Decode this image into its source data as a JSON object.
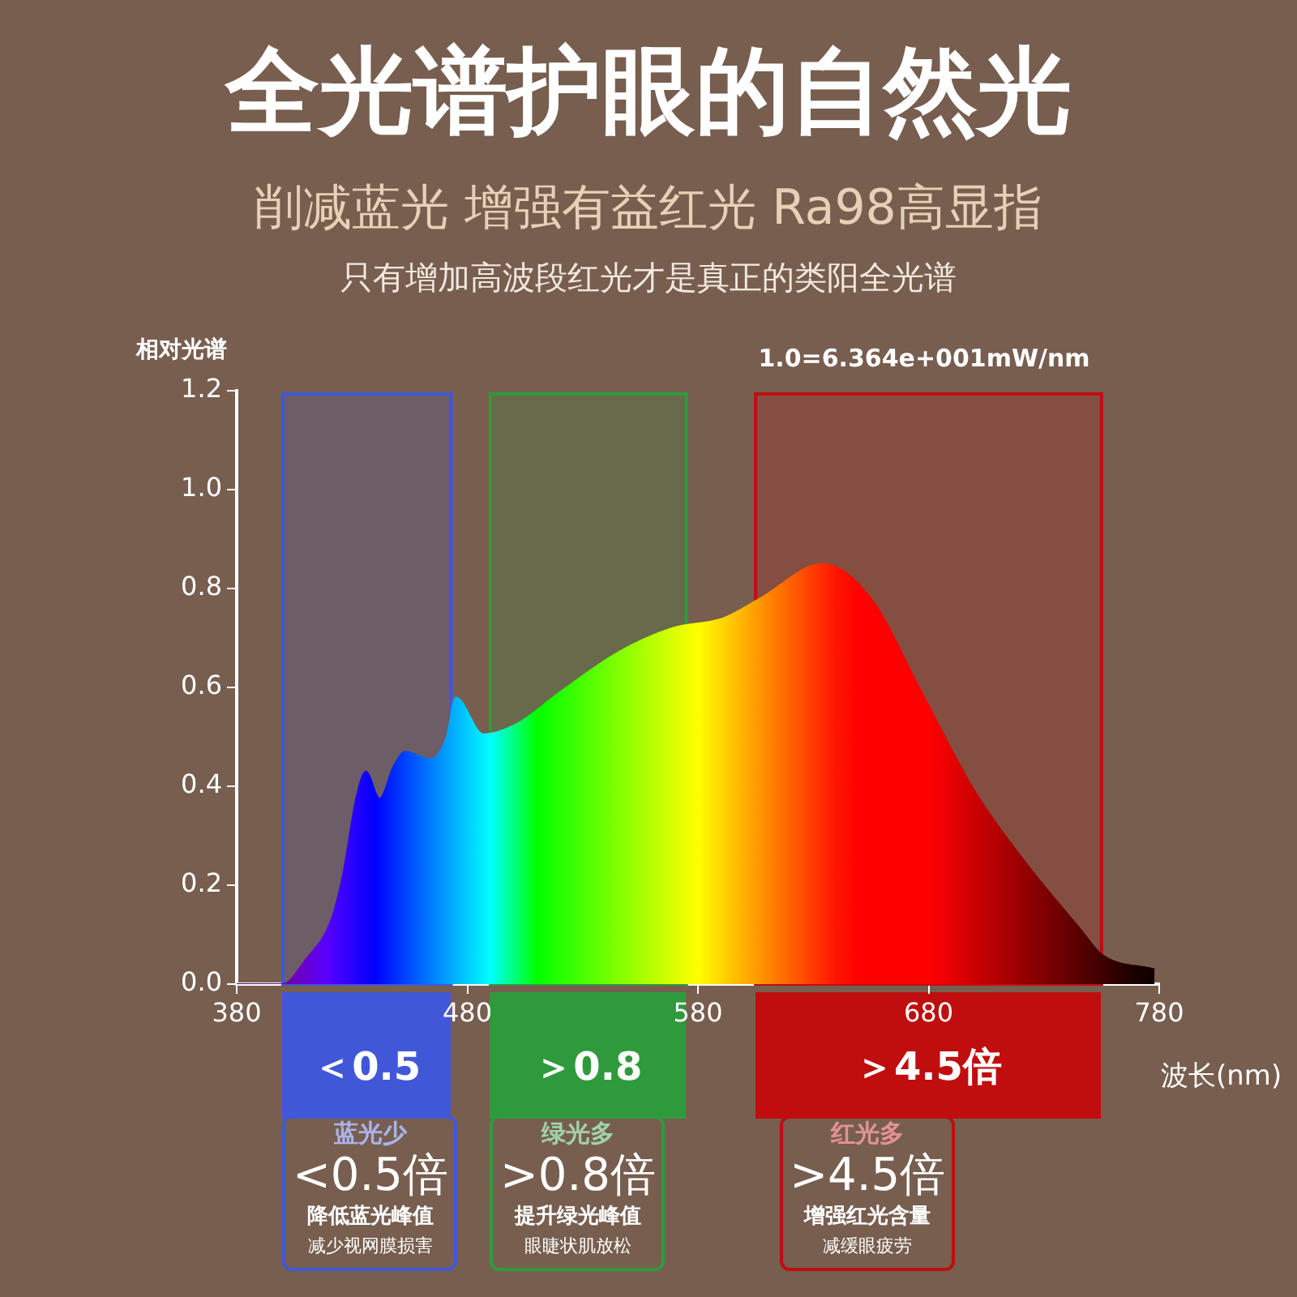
{
  "chart_data": {
    "type": "area",
    "title": "全光谱护眼的自然光",
    "subtitle": "削减蓝光 增强有益红光 Ra98高显指",
    "xlabel": "波长(nm)",
    "ylabel": "相对光谱",
    "x": [
      380,
      400,
      410,
      421,
      426,
      432,
      436,
      442,
      448,
      453,
      464,
      471,
      475,
      487,
      501,
      520,
      545,
      569,
      591,
      607,
      634,
      655,
      677,
      700,
      723,
      746,
      755,
      778
    ],
    "values": [
      0,
      0,
      0.05,
      0.13,
      0.22,
      0.38,
      0.43,
      0.375,
      0.44,
      0.47,
      0.455,
      0.5,
      0.58,
      0.505,
      0.525,
      0.59,
      0.67,
      0.72,
      0.74,
      0.78,
      0.85,
      0.78,
      0.59,
      0.39,
      0.24,
      0.11,
      0.06,
      0.03
    ],
    "xlim": [
      380,
      780
    ],
    "xticks": [
      380,
      480,
      580,
      680,
      780
    ],
    "ylim": [
      0,
      1.2
    ],
    "yticks": [
      {
        "value": 0,
        "label": "0.0"
      },
      {
        "value": 0.2,
        "label": "0.2"
      },
      {
        "value": 0.4,
        "label": "0.4"
      },
      {
        "value": 0.6,
        "label": "0.6"
      },
      {
        "value": 0.8,
        "label": "0.8"
      },
      {
        "value": 1,
        "label": "1.0"
      },
      {
        "value": 1.2,
        "label": "1.2"
      }
    ],
    "bands": [
      {
        "axis": "x",
        "from": 400,
        "to": 473,
        "label": "＜0.5",
        "color": "#4058d8"
      },
      {
        "axis": "x",
        "from": 490,
        "to": 575,
        "label": "＞0.8",
        "color": "#2f9a3c"
      },
      {
        "axis": "x",
        "from": 605,
        "to": 755,
        "label": "＞4.5倍",
        "color": "#c00d0d"
      }
    ],
    "annotations": [
      "只有增加高波段红光才是真正的类阳全光谱",
      "1.0=6.364e+001mW/nm",
      "蓝光少",
      "<0.5倍",
      "降低蓝光峰值",
      "减少视网膜损害",
      "绿光多",
      ">0.8倍",
      "提升绿光峰值",
      "眼睫状肌放松",
      "红光多",
      ">4.5倍",
      "增强红光含量",
      "减缓眼疲劳"
    ],
    "grid": false
  }
}
